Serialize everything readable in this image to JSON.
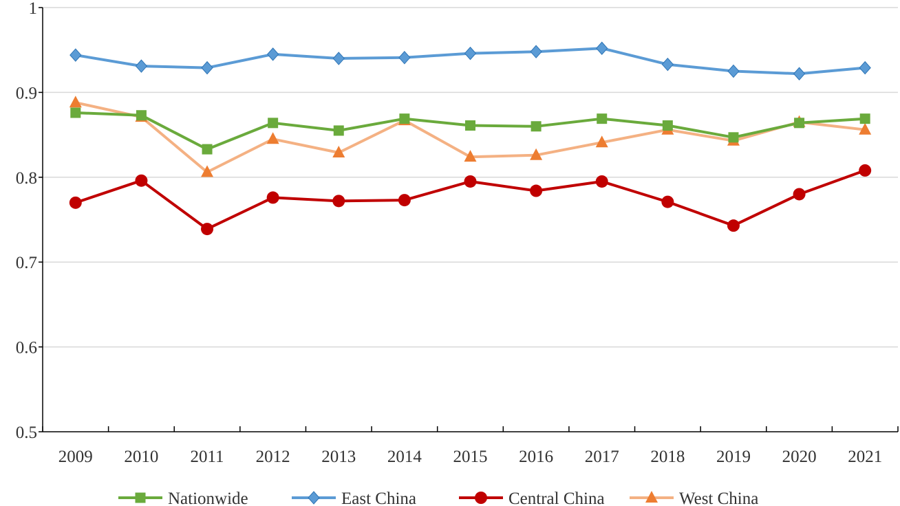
{
  "chart_data": {
    "type": "line",
    "title": "",
    "xlabel": "",
    "ylabel": "",
    "x": [
      "2009",
      "2010",
      "2011",
      "2012",
      "2013",
      "2014",
      "2015",
      "2016",
      "2017",
      "2018",
      "2019",
      "2020",
      "2021"
    ],
    "ylim": [
      0.5,
      1
    ],
    "yticks": [
      "0.5",
      "0.6",
      "0.7",
      "0.8",
      "0.9",
      "1"
    ],
    "grid": "horizontal",
    "legend_position": "bottom",
    "series": [
      {
        "name": "Nationwide",
        "color": "#6aaa3c",
        "marker": "square",
        "values": [
          0.876,
          0.873,
          0.833,
          0.864,
          0.855,
          0.869,
          0.861,
          0.86,
          0.869,
          0.861,
          0.847,
          0.864,
          0.869
        ]
      },
      {
        "name": "East China",
        "color": "#5b9bd5",
        "marker": "diamond",
        "values": [
          0.944,
          0.931,
          0.929,
          0.945,
          0.94,
          0.941,
          0.946,
          0.948,
          0.952,
          0.933,
          0.925,
          0.922,
          0.929
        ]
      },
      {
        "name": "Central China",
        "color": "#c00000",
        "marker": "circle",
        "values": [
          0.77,
          0.796,
          0.739,
          0.776,
          0.772,
          0.773,
          0.795,
          0.784,
          0.795,
          0.771,
          0.743,
          0.78,
          0.808
        ]
      },
      {
        "name": "West China",
        "color": "#f4b183",
        "marker_color": "#ed7d31",
        "marker": "triangle",
        "values": [
          0.888,
          0.871,
          0.806,
          0.845,
          0.829,
          0.867,
          0.824,
          0.826,
          0.841,
          0.856,
          0.843,
          0.865,
          0.856
        ]
      }
    ]
  }
}
